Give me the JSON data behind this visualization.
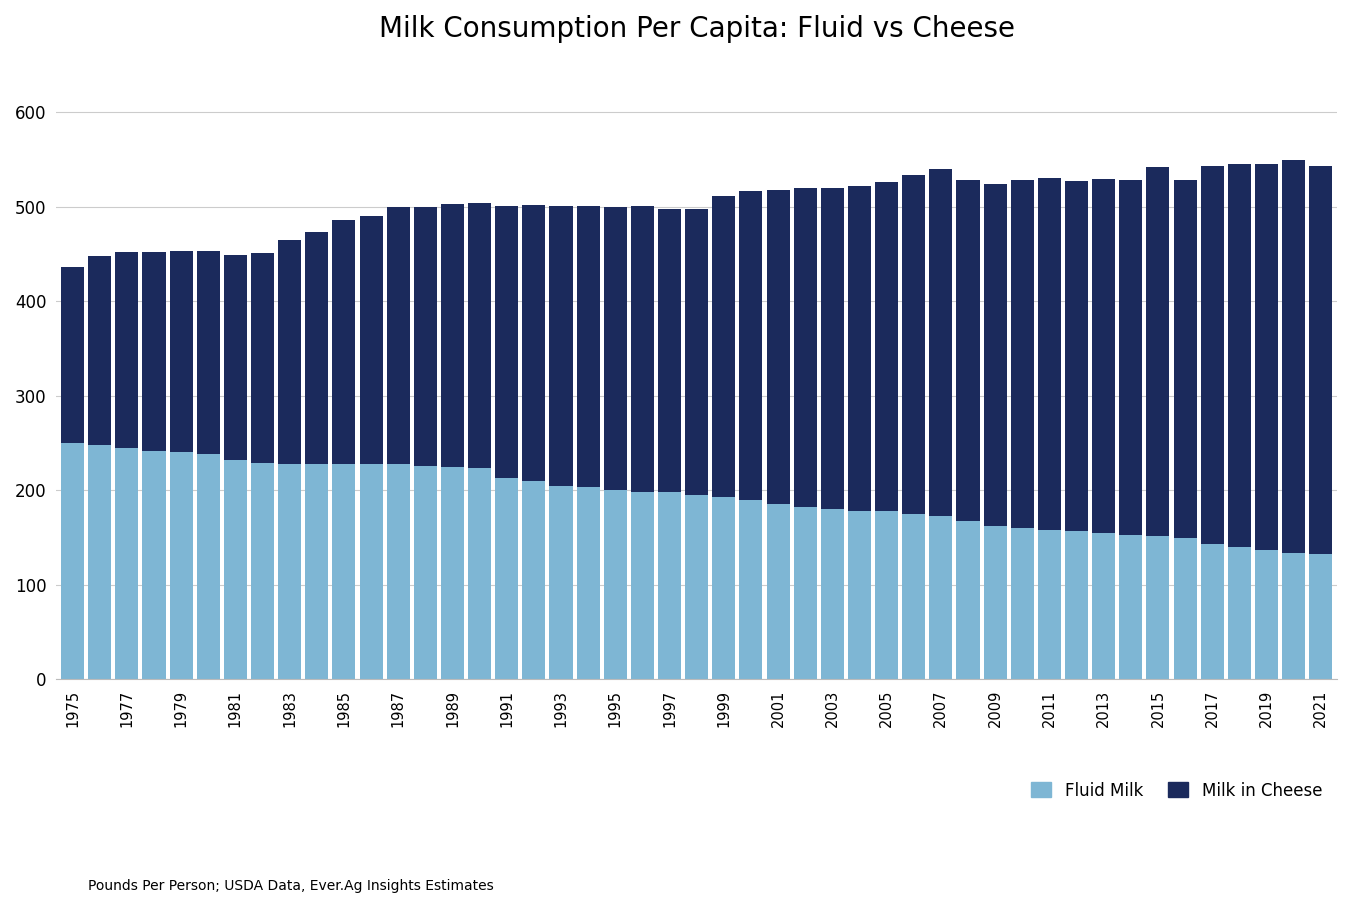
{
  "title": "Milk Consumption Per Capita: Fluid vs Cheese",
  "subtitle": "Pounds Per Person; USDA Data, Ever.Ag Insights Estimates",
  "legend_labels": [
    "Fluid Milk",
    "Milk in Cheese"
  ],
  "fluid_milk_color": "#7eb6d4",
  "cheese_milk_color": "#1b2a5c",
  "background_color": "#ffffff",
  "years": [
    1975,
    1976,
    1977,
    1978,
    1979,
    1980,
    1981,
    1982,
    1983,
    1984,
    1985,
    1986,
    1987,
    1988,
    1989,
    1990,
    1991,
    1992,
    1993,
    1994,
    1995,
    1996,
    1997,
    1998,
    1999,
    2000,
    2001,
    2002,
    2003,
    2004,
    2005,
    2006,
    2007,
    2008,
    2009,
    2010,
    2011,
    2012,
    2013,
    2014,
    2015,
    2016,
    2017,
    2018,
    2019,
    2020,
    2021
  ],
  "fluid_milk": [
    250,
    248,
    245,
    242,
    240,
    238,
    232,
    229,
    228,
    228,
    228,
    228,
    228,
    226,
    225,
    224,
    213,
    210,
    205,
    203,
    200,
    198,
    198,
    195,
    193,
    190,
    186,
    182,
    180,
    178,
    178,
    175,
    173,
    168,
    162,
    160,
    158,
    157,
    155,
    153,
    152,
    150,
    143,
    140,
    137,
    134,
    133
  ],
  "milk_in_cheese": [
    186,
    200,
    207,
    210,
    213,
    215,
    217,
    222,
    237,
    245,
    258,
    262,
    272,
    274,
    278,
    280,
    288,
    292,
    296,
    298,
    300,
    303,
    300,
    302,
    318,
    326,
    332,
    338,
    340,
    344,
    348,
    358,
    367,
    360,
    362,
    368,
    372,
    370,
    374,
    375,
    390,
    378,
    400,
    405,
    408,
    415,
    410
  ],
  "ylim": [
    0,
    650
  ],
  "yticks": [
    0,
    100,
    200,
    300,
    400,
    500,
    600
  ]
}
